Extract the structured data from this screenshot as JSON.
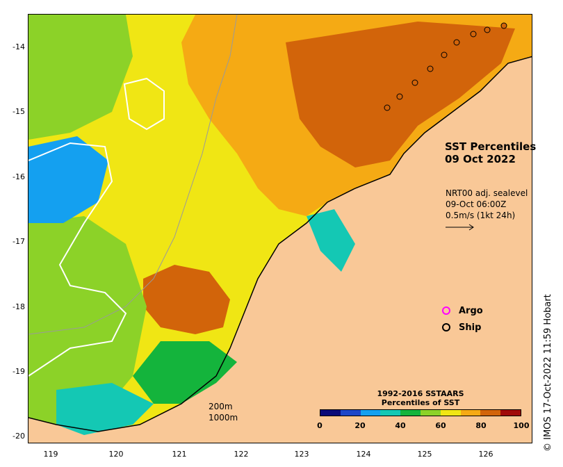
{
  "map": {
    "title_line1": "SST Percentiles",
    "title_line2": "09 Oct 2022",
    "current_info": [
      "NRT00 adj. sealevel",
      "09-Oct 06:00Z",
      "0.5m/s (1kt 24h)"
    ],
    "lat_labels": [
      "-14",
      "-15",
      "-16",
      "-17",
      "-18",
      "-19",
      "-20"
    ],
    "lon_labels": [
      "119",
      "120",
      "121",
      "122",
      "123",
      "124",
      "125",
      "126"
    ],
    "legend": [
      {
        "label": "Argo",
        "color": "#ff00ff"
      },
      {
        "label": "Ship",
        "color": "#000000"
      }
    ],
    "bathymetry": [
      "200m",
      "1000m"
    ],
    "colorbar": {
      "title_line1": "1992-2016 SSTAARS",
      "title_line2": "Percentiles of SST",
      "labels": [
        "0",
        "20",
        "40",
        "60",
        "80",
        "100"
      ],
      "colors": [
        "#0a0a78",
        "#1e46c8",
        "#14a0f0",
        "#14c8b4",
        "#14b43c",
        "#8cd228",
        "#f0e614",
        "#f5aa14",
        "#d2640a",
        "#a00a0a"
      ]
    },
    "credit": "© IMOS 17-Oct-2022 11:59 Hobart"
  }
}
